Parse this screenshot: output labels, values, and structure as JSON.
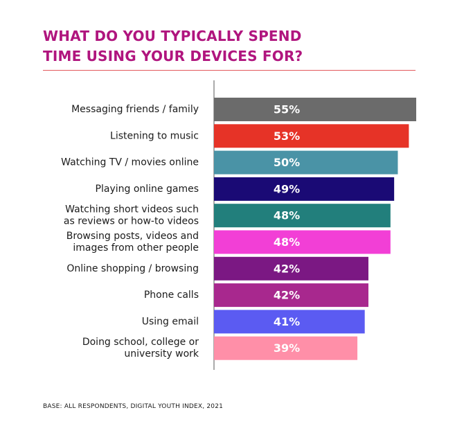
{
  "chart_data": {
    "type": "bar",
    "orientation": "horizontal",
    "title_lines": [
      "WHAT DO YOU TYPICALLY SPEND",
      "TIME USING YOUR DEVICES FOR?"
    ],
    "categories": [
      [
        "Messaging friends / family"
      ],
      [
        "Listening to music"
      ],
      [
        "Watching TV / movies online"
      ],
      [
        "Playing online games"
      ],
      [
        "Watching short videos such",
        "as reviews or how-to videos"
      ],
      [
        "Browsing posts, videos and",
        "images from other people"
      ],
      [
        "Online shopping / browsing"
      ],
      [
        "Phone calls"
      ],
      [
        "Using email"
      ],
      [
        "Doing school, college or",
        "university work"
      ]
    ],
    "values": [
      55,
      53,
      50,
      49,
      48,
      48,
      42,
      42,
      41,
      39
    ],
    "value_labels": [
      "55%",
      "53%",
      "50%",
      "49%",
      "48%",
      "48%",
      "42%",
      "42%",
      "41%",
      "39%"
    ],
    "colors": [
      "#6b6b6b",
      "#e63327",
      "#4a93a6",
      "#1a0a75",
      "#227f7c",
      "#f23fd6",
      "#7b1883",
      "#a8288e",
      "#5b5bf2",
      "#ff8fa8"
    ],
    "xlim": [
      0,
      55
    ],
    "unit": "%",
    "grid": false,
    "legend": "none"
  },
  "footnote": "BASE: ALL RESPONDENTS, DIGITAL YOUTH INDEX, 2021"
}
